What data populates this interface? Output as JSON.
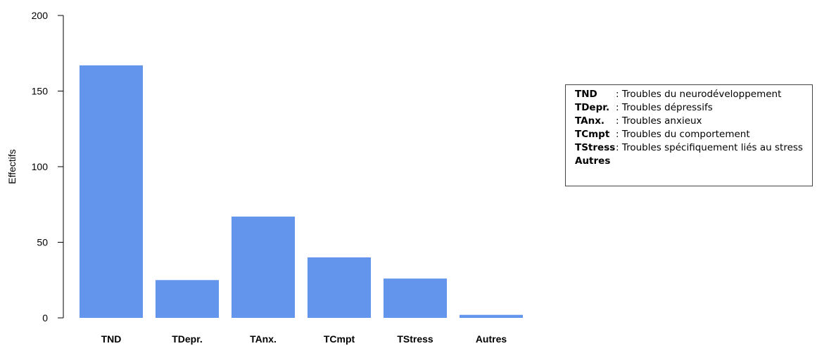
{
  "chart_data": {
    "type": "bar",
    "categories": [
      "TND",
      "TDepr.",
      "TAnx.",
      "TCmpt",
      "TStress",
      "Autres"
    ],
    "values": [
      167,
      25,
      67,
      40,
      26,
      2
    ],
    "ylabel": "Effectifs",
    "ylim": [
      0,
      200
    ],
    "yticks": [
      0,
      50,
      100,
      150,
      200
    ],
    "bar_color": "#6495ed",
    "grid": false,
    "legend_placement": "right"
  },
  "legend": {
    "items": [
      {
        "abbr": "TND",
        "desc": ": Troubles du neurodéveloppement"
      },
      {
        "abbr": "TDepr.",
        "desc": ": Troubles dépressifs"
      },
      {
        "abbr": "TAnx.",
        "desc": ": Troubles anxieux"
      },
      {
        "abbr": "TCmpt",
        "desc": ": Troubles du comportement"
      },
      {
        "abbr": "TStress",
        "desc": ": Troubles spécifiquement liés au stress"
      },
      {
        "abbr": "Autres",
        "desc": ""
      }
    ]
  }
}
